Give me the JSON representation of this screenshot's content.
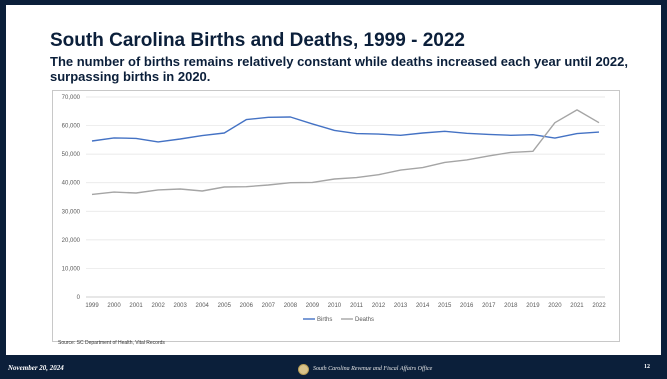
{
  "slide": {
    "title": "South Carolina Births and Deaths, 1999 - 2022",
    "subtitle": "The number of births remains relatively constant while deaths increased each year until 2022, surpassing births in 2020."
  },
  "chart_data": {
    "type": "line",
    "x": [
      "1999",
      "2000",
      "2001",
      "2002",
      "2003",
      "2004",
      "2005",
      "2006",
      "2007",
      "2008",
      "2009",
      "2010",
      "2011",
      "2012",
      "2013",
      "2014",
      "2015",
      "2016",
      "2017",
      "2018",
      "2019",
      "2020",
      "2021",
      "2022"
    ],
    "series": [
      {
        "name": "Births",
        "color": "#4472c4",
        "values": [
          54600,
          55700,
          55500,
          54300,
          55300,
          56500,
          57400,
          62100,
          62900,
          63000,
          60600,
          58300,
          57200,
          57000,
          56600,
          57400,
          58000,
          57300,
          56900,
          56600,
          56800,
          55600,
          57200,
          57700
        ]
      },
      {
        "name": "Deaths",
        "color": "#a5a5a5",
        "values": [
          35900,
          36700,
          36400,
          37500,
          37800,
          37100,
          38500,
          38600,
          39200,
          40000,
          40100,
          41300,
          41800,
          42800,
          44400,
          45300,
          47100,
          48000,
          49400,
          50600,
          51000,
          61000,
          65500,
          61000
        ]
      }
    ],
    "yticks": [
      "0",
      "10,000",
      "20,000",
      "30,000",
      "40,000",
      "50,000",
      "60,000",
      "70,000"
    ],
    "ylim": [
      0,
      70000
    ],
    "grid": true,
    "legend_position": "bottom"
  },
  "source": "Source: SC Department of Health, Vital Records",
  "footer": {
    "date": "November 20, 2024",
    "office": "South Carolina Revenue and Fiscal Affairs Office",
    "page": "12"
  },
  "colors": {
    "navy": "#0b1f3a",
    "births": "#4472c4",
    "deaths": "#a5a5a5"
  }
}
